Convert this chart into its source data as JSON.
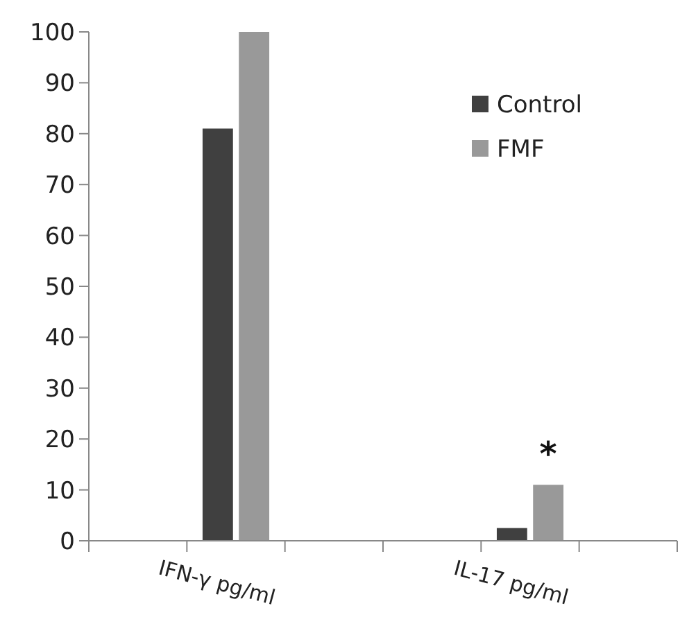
{
  "chart_data": {
    "type": "bar",
    "categories": [
      null,
      "IFN-γ pg/ml",
      null,
      null,
      "IL-17 pg/ml",
      null
    ],
    "series": [
      {
        "name": "Control",
        "color": "#404040",
        "values": [
          null,
          81,
          null,
          null,
          2.5,
          null
        ]
      },
      {
        "name": "FMF",
        "color": "#999999",
        "values": [
          null,
          100,
          null,
          null,
          11,
          null
        ]
      }
    ],
    "ylim": [
      0,
      100
    ],
    "yticks": [
      0,
      10,
      20,
      30,
      40,
      50,
      60,
      70,
      80,
      90,
      100
    ],
    "grid": false,
    "legend": "top right",
    "annotations": [
      "*"
    ]
  }
}
